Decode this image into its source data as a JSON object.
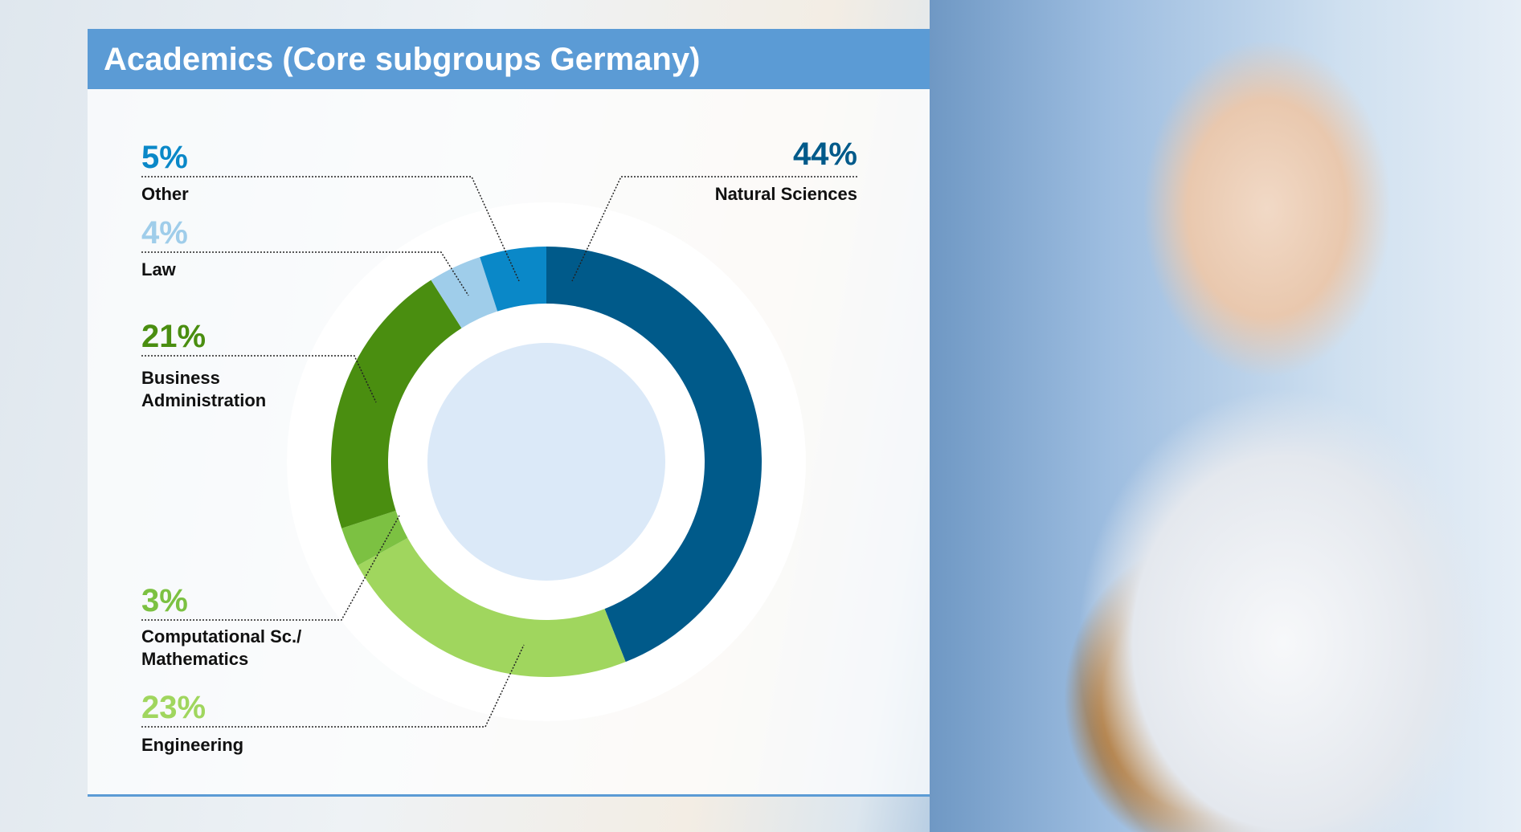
{
  "chart_data": {
    "type": "pie",
    "donut": true,
    "title": "Academics (Core subgroups Germany)",
    "categories": [
      "Natural Sciences",
      "Engineering",
      "Computational Sc./ Mathematics",
      "Business Administration",
      "Law",
      "Other"
    ],
    "values": [
      44,
      23,
      3,
      21,
      4,
      5
    ],
    "value_labels": [
      "44%",
      "23%",
      "3%",
      "21%",
      "4%",
      "5%"
    ],
    "colors": [
      "#005a8a",
      "#a0d65e",
      "#7cc142",
      "#4a8e10",
      "#9fcdea",
      "#0a88c8"
    ]
  }
}
